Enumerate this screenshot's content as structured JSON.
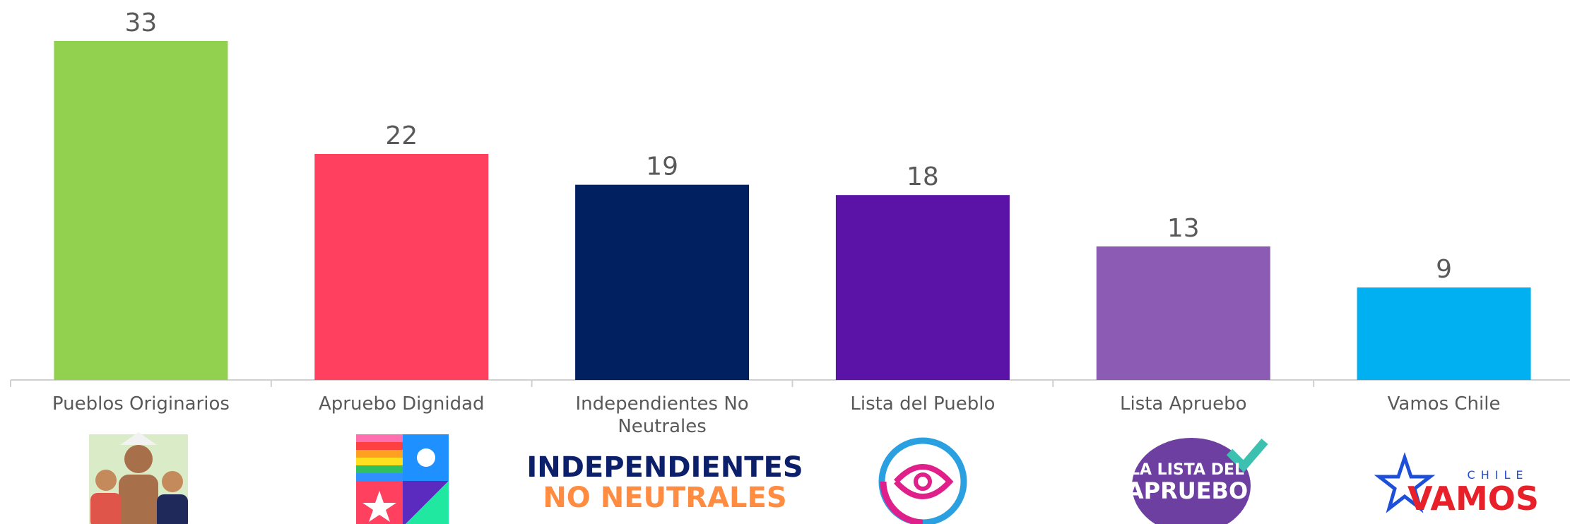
{
  "chart_data": {
    "type": "bar",
    "categories": [
      "Pueblos Originarios",
      "Apruebo Dignidad",
      "Independientes No Neutrales",
      "Lista del Pueblo",
      "Lista Apruebo",
      "Vamos Chile"
    ],
    "values": [
      33,
      22,
      19,
      18,
      13,
      9
    ],
    "colors": [
      "#92d050",
      "#ff405e",
      "#002060",
      "#5b12a6",
      "#8c5cb4",
      "#00b0f0"
    ],
    "logos": {
      "independientes": [
        "INDEPENDIENTES",
        "NO NEUTRALES"
      ],
      "lista_apruebo": [
        "LA LISTA DEL",
        "APRUEBO"
      ],
      "vamos": [
        "CHILE",
        "VAMOS"
      ]
    }
  }
}
